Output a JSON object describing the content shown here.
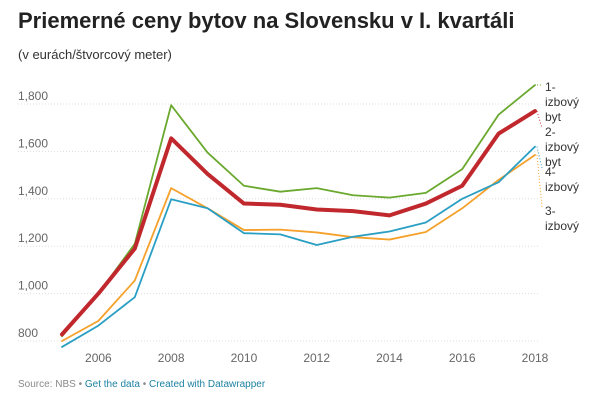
{
  "header": {
    "title": "Priemerné ceny bytov na Slovensku v I. kvartáli",
    "subtitle": "(v eurách/štvorcový meter)"
  },
  "footer": {
    "source": "Source: NBS",
    "sep1": " • ",
    "get_data": "Get the data",
    "sep2": " • ",
    "created": "Created with Datawrapper"
  },
  "colors": {
    "s1": "#6aa82e",
    "s2": "#c0282d",
    "s3": "#f5a12b",
    "s4": "#2a9fc3",
    "grid": "#dddddd"
  },
  "chart_data": {
    "type": "line",
    "title": "Priemerné ceny bytov na Slovensku v I. kvartáli",
    "subtitle": "(v eurách/štvorcový meter)",
    "xlabel": "",
    "ylabel": "",
    "x": [
      2005,
      2006,
      2007,
      2008,
      2009,
      2010,
      2011,
      2012,
      2013,
      2014,
      2015,
      2016,
      2017,
      2018
    ],
    "xticks": [
      "2006",
      "2008",
      "2010",
      "2012",
      "2014",
      "2016",
      "2018"
    ],
    "yticks": [
      "800",
      "1,000",
      "1,200",
      "1,400",
      "1,600",
      "1,800"
    ],
    "ylim": [
      800,
      1900
    ],
    "grid": true,
    "series": [
      {
        "name": "1-izbový byt",
        "label_lines": [
          "1-",
          "izbový",
          "byt"
        ],
        "color_key": "s1",
        "values": [
          820,
          1000,
          1210,
          1795,
          1595,
          1455,
          1430,
          1445,
          1415,
          1405,
          1425,
          1525,
          1755,
          1880
        ]
      },
      {
        "name": "2-izbový byt",
        "label_lines": [
          "2-",
          "izbový",
          "byt"
        ],
        "color_key": "s2",
        "values": [
          828,
          1000,
          1190,
          1655,
          1505,
          1380,
          1375,
          1355,
          1348,
          1330,
          1380,
          1455,
          1675,
          1770
        ]
      },
      {
        "name": "3-izbový",
        "label_lines": [
          "3-",
          "izbový"
        ],
        "color_key": "s3",
        "values": [
          800,
          885,
          1055,
          1445,
          1360,
          1268,
          1270,
          1258,
          1238,
          1228,
          1260,
          1360,
          1480,
          1585
        ]
      },
      {
        "name": "4-izbový",
        "label_lines": [
          "4-",
          "izbový"
        ],
        "color_key": "s4",
        "values": [
          775,
          865,
          985,
          1398,
          1360,
          1255,
          1250,
          1205,
          1240,
          1262,
          1300,
          1400,
          1470,
          1620
        ]
      }
    ]
  }
}
